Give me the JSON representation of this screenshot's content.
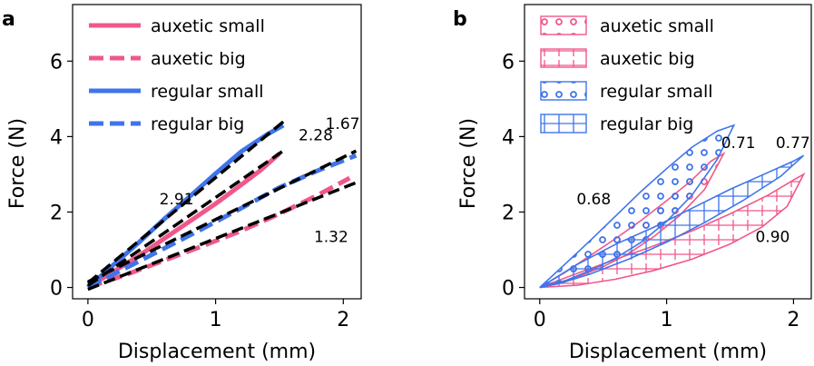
{
  "colors": {
    "pink": "#f0588a",
    "blue": "#3f74ea",
    "fit": "#000000"
  },
  "chart_data": [
    {
      "panel_label": "a",
      "type": "line",
      "xlabel": "Displacement (mm)",
      "ylabel": "Force (N)",
      "xlim": [
        -0.12,
        2.14
      ],
      "ylim": [
        -0.3,
        7.5
      ],
      "xticks": [
        0,
        1,
        2
      ],
      "yticks": [
        0,
        2,
        4,
        6
      ],
      "xtick_labels": [
        "0",
        "1",
        "2"
      ],
      "ytick_labels": [
        "0",
        "2",
        "4",
        "6"
      ],
      "grid": false,
      "legend_position": "top-left",
      "series": [
        {
          "name": "auxetic small",
          "color": "pink",
          "dash": "solid",
          "x": [
            0,
            0.2,
            0.4,
            0.6,
            0.8,
            1.0,
            1.2,
            1.35,
            1.5
          ],
          "y": [
            0,
            0.42,
            0.84,
            1.3,
            1.76,
            2.22,
            2.72,
            3.1,
            3.55
          ]
        },
        {
          "name": "auxetic big",
          "color": "pink",
          "dash": "dashed",
          "x": [
            0,
            0.3,
            0.6,
            0.9,
            1.2,
            1.5,
            1.8,
            2.05
          ],
          "y": [
            0,
            0.34,
            0.72,
            1.1,
            1.5,
            1.95,
            2.45,
            2.9
          ]
        },
        {
          "name": "regular small",
          "color": "blue",
          "dash": "solid",
          "x": [
            0,
            0.2,
            0.4,
            0.6,
            0.8,
            1.0,
            1.2,
            1.4,
            1.53
          ],
          "y": [
            0,
            0.6,
            1.2,
            1.82,
            2.42,
            3.02,
            3.6,
            4.05,
            4.3
          ]
        },
        {
          "name": "regular big",
          "color": "blue",
          "dash": "dashed",
          "x": [
            0,
            0.3,
            0.6,
            0.9,
            1.2,
            1.5,
            1.8,
            2.1
          ],
          "y": [
            0,
            0.52,
            1.04,
            1.56,
            2.1,
            2.65,
            3.1,
            3.5
          ]
        }
      ],
      "fit_lines": [
        {
          "x": [
            0,
            1.55
          ],
          "y": [
            0.12,
            4.45
          ]
        },
        {
          "x": [
            0,
            1.52
          ],
          "y": [
            0.05,
            3.6
          ]
        },
        {
          "x": [
            0,
            2.1
          ],
          "y": [
            0.15,
            3.62
          ]
        },
        {
          "x": [
            0,
            2.1
          ],
          "y": [
            -0.05,
            2.78
          ]
        }
      ],
      "annotations": [
        {
          "text": "2.91",
          "x": 0.56,
          "y": 2.2
        },
        {
          "text": "2.28",
          "x": 1.65,
          "y": 3.9
        },
        {
          "text": "1.67",
          "x": 1.86,
          "y": 4.2
        },
        {
          "text": "1.32",
          "x": 1.77,
          "y": 1.2
        }
      ]
    },
    {
      "panel_label": "b",
      "type": "area",
      "xlabel": "Displacement (mm)",
      "ylabel": "Force (N)",
      "xlim": [
        -0.12,
        2.14
      ],
      "ylim": [
        -0.3,
        7.5
      ],
      "xticks": [
        0,
        1,
        2
      ],
      "yticks": [
        0,
        2,
        4,
        6
      ],
      "xtick_labels": [
        "0",
        "1",
        "2"
      ],
      "ytick_labels": [
        "0",
        "2",
        "4",
        "6"
      ],
      "grid": false,
      "legend_position": "top-left",
      "series": [
        {
          "name": "auxetic small",
          "color": "pink",
          "hatch": "circles",
          "loading": {
            "x": [
              0,
              0.2,
              0.4,
              0.6,
              0.8,
              1.0,
              1.2,
              1.35,
              1.45
            ],
            "y": [
              0,
              0.4,
              0.85,
              1.3,
              1.78,
              2.3,
              2.85,
              3.35,
              3.55
            ]
          },
          "unloading": {
            "x": [
              1.45,
              1.3,
              1.1,
              0.9,
              0.7,
              0.5,
              0.3,
              0.1,
              0
            ],
            "y": [
              3.55,
              2.6,
              1.9,
              1.35,
              0.9,
              0.55,
              0.28,
              0.08,
              0
            ]
          }
        },
        {
          "name": "auxetic big",
          "color": "pink",
          "hatch": "crosses",
          "loading": {
            "x": [
              0,
              0.3,
              0.6,
              0.9,
              1.2,
              1.5,
              1.8,
              2.0,
              2.08
            ],
            "y": [
              0,
              0.38,
              0.75,
              1.1,
              1.5,
              1.95,
              2.45,
              2.85,
              3.0
            ]
          },
          "unloading": {
            "x": [
              2.08,
              1.95,
              1.75,
              1.5,
              1.2,
              0.9,
              0.6,
              0.3,
              0
            ],
            "y": [
              3.0,
              2.15,
              1.6,
              1.15,
              0.75,
              0.45,
              0.22,
              0.06,
              0
            ]
          }
        },
        {
          "name": "regular small",
          "color": "blue",
          "hatch": "circles",
          "loading": {
            "x": [
              0,
              0.2,
              0.4,
              0.6,
              0.8,
              1.0,
              1.2,
              1.4,
              1.53
            ],
            "y": [
              0,
              0.62,
              1.25,
              1.9,
              2.55,
              3.15,
              3.72,
              4.15,
              4.3
            ]
          },
          "unloading": {
            "x": [
              1.53,
              1.4,
              1.2,
              1.0,
              0.8,
              0.6,
              0.4,
              0.2,
              0
            ],
            "y": [
              4.3,
              3.4,
              2.45,
              1.75,
              1.2,
              0.78,
              0.45,
              0.18,
              0
            ]
          }
        },
        {
          "name": "regular big",
          "color": "blue",
          "hatch": "grid",
          "loading": {
            "x": [
              0,
              0.3,
              0.6,
              0.9,
              1.2,
              1.5,
              1.8,
              2.0,
              2.08
            ],
            "y": [
              0,
              0.62,
              1.15,
              1.6,
              2.1,
              2.6,
              3.05,
              3.35,
              3.5
            ]
          },
          "unloading": {
            "x": [
              2.08,
              1.9,
              1.6,
              1.3,
              1.0,
              0.7,
              0.4,
              0.15,
              0
            ],
            "y": [
              3.5,
              2.95,
              2.3,
              1.72,
              1.2,
              0.75,
              0.36,
              0.1,
              0
            ]
          }
        }
      ],
      "annotations": [
        {
          "text": "0.68",
          "x": 0.29,
          "y": 2.2
        },
        {
          "text": "0.71",
          "x": 1.43,
          "y": 3.7
        },
        {
          "text": "0.77",
          "x": 1.86,
          "y": 3.7
        },
        {
          "text": "0.90",
          "x": 1.7,
          "y": 1.2
        }
      ]
    }
  ]
}
